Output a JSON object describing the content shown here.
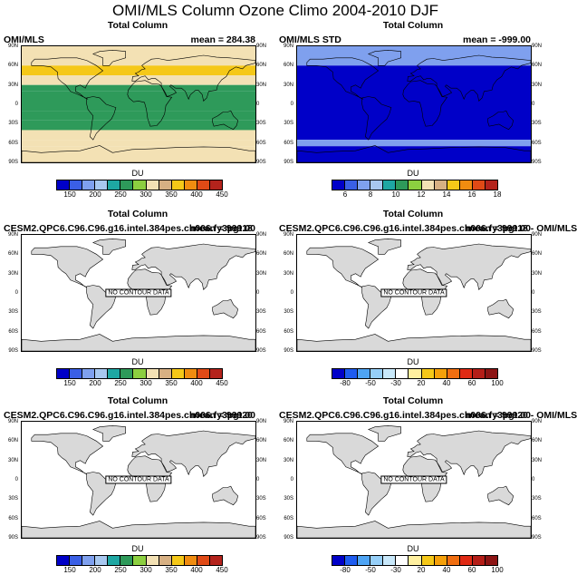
{
  "title": "OMI/MLS Column Ozone Climo 2004-2010 DJF",
  "lat_labels": [
    "90N",
    "60N",
    "30N",
    "0",
    "30S",
    "60S",
    "90S"
  ],
  "no_contour_text": "NO CONTOUR DATA",
  "colors": {
    "abs": [
      "#0000c8",
      "#3a5fe5",
      "#7fa0ee",
      "#a8c8f0",
      "#1ea7a3",
      "#2e9a5a",
      "#8ccf40",
      "#f3e1b4",
      "#d7b083",
      "#f5c818",
      "#f08c10",
      "#e04a16",
      "#b4231c"
    ],
    "diff": [
      "#0000c8",
      "#1e5cf0",
      "#4ea4f4",
      "#96cff8",
      "#c8e8fa",
      "#ffffff",
      "#fff0a0",
      "#f5c818",
      "#f5a00a",
      "#f06e10",
      "#e02a14",
      "#b41e18",
      "#8c1414"
    ],
    "land": "#d9d9d9"
  },
  "panels": [
    {
      "title": "Total Column",
      "left_string": "OMI/MLS",
      "right_string": "mean = 284.38",
      "units": "DU",
      "ticks": [
        "150",
        "200",
        "250",
        "300",
        "350",
        "400",
        "450"
      ],
      "palette": "abs",
      "has_data": true
    },
    {
      "title": "Total Column",
      "left_string": "OMI/MLS STD",
      "right_string": "mean = -999.00",
      "units": "DU",
      "ticks": [
        "6",
        "8",
        "10",
        "12",
        "14",
        "16",
        "18"
      ],
      "palette": "abs",
      "has_data": true
    },
    {
      "title": "Total Column",
      "left_string": "CESM2.QPC6.C96.C96.g16.intel.384pes.ch006.fy3pgt18",
      "right_string": "mean = 999.00",
      "units": "DU",
      "ticks": [
        "150",
        "200",
        "250",
        "300",
        "350",
        "400",
        "450"
      ],
      "palette": "abs",
      "has_data": false
    },
    {
      "title": "Total Column",
      "left_string": "CESM2.QPC6.C96.C96.g16.intel.384pes.ch006.fy3pgt18 - OMI/MLS",
      "right_string": "mean = 999.00",
      "units": "DU",
      "ticks": [
        "-80",
        "-50",
        "-30",
        "20",
        "40",
        "60",
        "100"
      ],
      "palette": "diff",
      "has_data": false
    },
    {
      "title": "Total Column",
      "left_string": "CESM2.QPC6.C96.C96.g16.intel.384pes.ch006.fy3pgt20",
      "right_string": "mean = 999.00",
      "units": "DU",
      "ticks": [
        "150",
        "200",
        "250",
        "300",
        "350",
        "400",
        "450"
      ],
      "palette": "abs",
      "has_data": false
    },
    {
      "title": "Total Column",
      "left_string": "CESM2.QPC6.C96.C96.g16.intel.384pes.ch006.fy3pgt20 - OMI/MLS",
      "right_string": "mean = 999.00",
      "units": "DU",
      "ticks": [
        "-80",
        "-50",
        "-30",
        "20",
        "40",
        "60",
        "100"
      ],
      "palette": "diff",
      "has_data": false
    }
  ],
  "chart_data": [
    {
      "type": "heatmap",
      "title": "Total Column",
      "left_string": "OMI/MLS",
      "mean": 284.38,
      "units": "DU",
      "colorbar_ticks": [
        150,
        200,
        250,
        300,
        350,
        400,
        450
      ],
      "zonal_bands": [
        {
          "lat": [
            60,
            90
          ],
          "value": 340
        },
        {
          "lat": [
            45,
            60
          ],
          "value": 360
        },
        {
          "lat": [
            30,
            45
          ],
          "value": 310
        },
        {
          "lat": [
            20,
            30
          ],
          "value": 275
        },
        {
          "lat": [
            -10,
            20
          ],
          "value": 250
        },
        {
          "lat": [
            -25,
            -10
          ],
          "value": 265
        },
        {
          "lat": [
            -40,
            -25
          ],
          "value": 280
        },
        {
          "lat": [
            -55,
            -40
          ],
          "value": 310
        },
        {
          "lat": [
            -65,
            -55
          ],
          "value": 320
        },
        {
          "lat": [
            -90,
            -65
          ],
          "value": 300
        }
      ]
    },
    {
      "type": "heatmap",
      "title": "Total Column",
      "left_string": "OMI/MLS STD",
      "mean": -999.0,
      "units": "DU",
      "colorbar_ticks": [
        6,
        8,
        10,
        12,
        14,
        16,
        18
      ],
      "zonal_bands": [
        {
          "lat": [
            60,
            90
          ],
          "value": 7
        },
        {
          "lat": [
            -55,
            60
          ],
          "value": 4
        },
        {
          "lat": [
            -65,
            -55
          ],
          "value": 7
        },
        {
          "lat": [
            -90,
            -65
          ],
          "value": 4
        }
      ]
    },
    {
      "type": "heatmap",
      "title": "Total Column",
      "mean": 999.0,
      "units": "DU",
      "colorbar_ticks": [
        150,
        200,
        250,
        300,
        350,
        400,
        450
      ],
      "no_data": true
    },
    {
      "type": "heatmap",
      "title": "Total Column",
      "mean": 999.0,
      "units": "DU",
      "colorbar_ticks": [
        -80,
        -50,
        -30,
        20,
        40,
        60,
        100
      ],
      "no_data": true
    },
    {
      "type": "heatmap",
      "title": "Total Column",
      "mean": 999.0,
      "units": "DU",
      "colorbar_ticks": [
        150,
        200,
        250,
        300,
        350,
        400,
        450
      ],
      "no_data": true
    },
    {
      "type": "heatmap",
      "title": "Total Column",
      "mean": 999.0,
      "units": "DU",
      "colorbar_ticks": [
        -80,
        -50,
        -30,
        20,
        40,
        60,
        100
      ],
      "no_data": true
    }
  ]
}
